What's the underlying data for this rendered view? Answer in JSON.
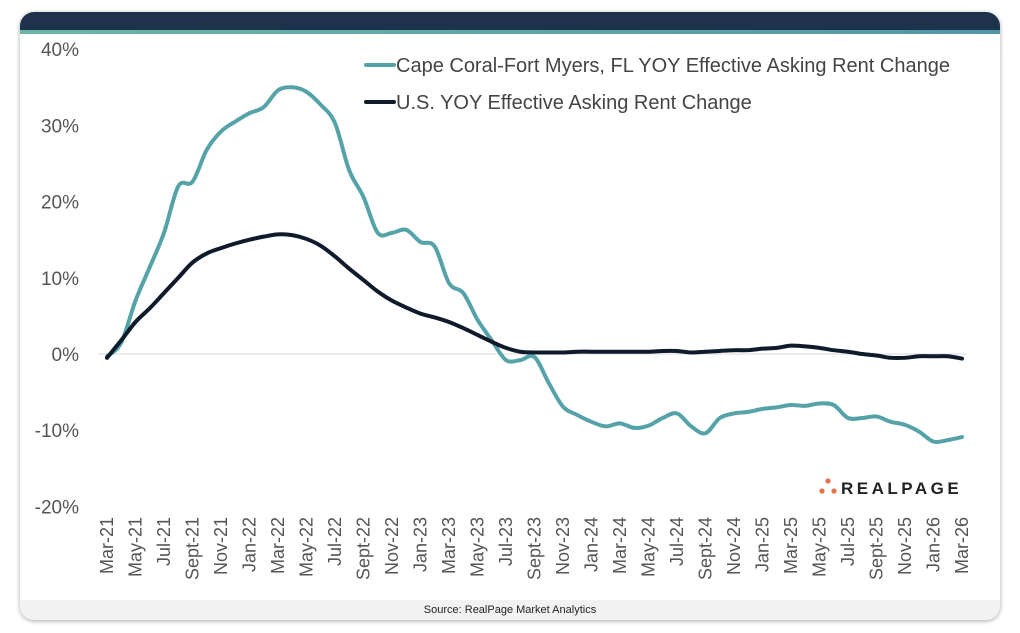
{
  "chart_data": {
    "type": "line",
    "title": "",
    "xlabel": "",
    "ylabel": "",
    "ylim": [
      -20,
      40
    ],
    "y_ticks": [
      "40%",
      "30%",
      "20%",
      "10%",
      "0%",
      "-10%",
      "-20%"
    ],
    "y_tick_values": [
      40,
      30,
      20,
      10,
      0,
      -10,
      -20
    ],
    "x_tick_labels": [
      "Mar-21",
      "May-21",
      "Jul-21",
      "Sept-21",
      "Nov-21",
      "Jan-22",
      "Mar-22",
      "May-22",
      "Jul-22",
      "Sept-22",
      "Nov-22",
      "Jan-23",
      "Mar-23",
      "May-23",
      "Jul-23",
      "Sept-23",
      "Nov-23",
      "Jan-24",
      "Mar-24",
      "May-24",
      "Jul-24",
      "Sept-24",
      "Nov-24",
      "Jan-25",
      "Mar-25",
      "May-25",
      "Jul-25",
      "Sept-25",
      "Nov-25",
      "Jan-26",
      "Mar-26"
    ],
    "x_range": [
      "Mar-21",
      "Mar-26"
    ],
    "x_frequency": "monthly",
    "grid": false,
    "zero_line": true,
    "legend_position": "top-right",
    "series": [
      {
        "name": "Cape Coral-Fort Myers, FL YOY Effective Asking Rent Change",
        "color": "#55a3a9",
        "values": [
          -0.3,
          1.5,
          7.0,
          11.4,
          15.9,
          22.0,
          22.6,
          26.8,
          29.2,
          30.5,
          31.6,
          32.4,
          34.6,
          35.0,
          34.4,
          32.7,
          30.3,
          24.1,
          20.6,
          15.9,
          15.9,
          16.3,
          14.7,
          14.1,
          9.3,
          8.0,
          4.5,
          1.8,
          -0.8,
          -0.8,
          -0.4,
          -3.8,
          -6.9,
          -8.0,
          -8.9,
          -9.5,
          -9.1,
          -9.7,
          -9.4,
          -8.4,
          -7.8,
          -9.5,
          -10.4,
          -8.4,
          -7.8,
          -7.6,
          -7.2,
          -7.0,
          -6.7,
          -6.8,
          -6.5,
          -6.7,
          -8.4,
          -8.4,
          -8.2,
          -8.9,
          -9.3,
          -10.2,
          -11.5,
          -11.3,
          -10.9
        ]
      },
      {
        "name": "U.S. YOY Effective Asking Rent Change",
        "color": "#0f1a2a",
        "values": [
          -0.5,
          1.8,
          4.2,
          6.0,
          8.0,
          10.0,
          12.0,
          13.2,
          13.9,
          14.5,
          15.0,
          15.4,
          15.7,
          15.6,
          15.1,
          14.2,
          12.8,
          11.2,
          9.7,
          8.2,
          7.0,
          6.1,
          5.3,
          4.8,
          4.2,
          3.4,
          2.5,
          1.6,
          0.8,
          0.3,
          0.2,
          0.2,
          0.2,
          0.3,
          0.3,
          0.3,
          0.3,
          0.3,
          0.3,
          0.4,
          0.4,
          0.2,
          0.3,
          0.4,
          0.5,
          0.5,
          0.7,
          0.8,
          1.1,
          1.0,
          0.8,
          0.5,
          0.3,
          0.0,
          -0.2,
          -0.5,
          -0.5,
          -0.3,
          -0.3,
          -0.3,
          -0.6
        ]
      }
    ]
  },
  "logo": {
    "text": "REALPAGE",
    "dot_color": "#e8714a"
  },
  "footer": {
    "source": "Source: RealPage Market Analytics"
  }
}
